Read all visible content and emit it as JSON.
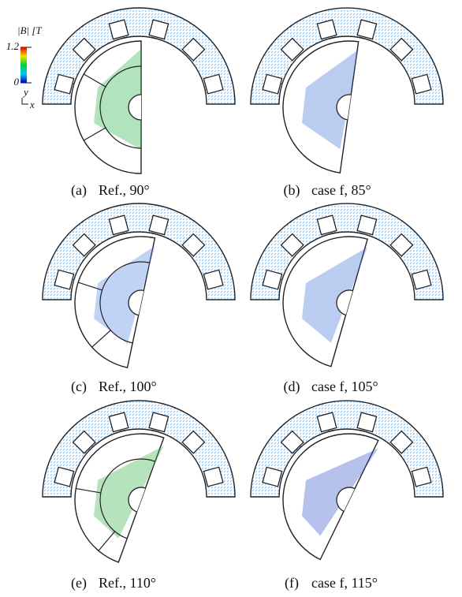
{
  "colorbar": {
    "label": "|B| [T",
    "ticks": [
      0,
      1.2
    ],
    "axes": {
      "y": "y",
      "x": "x"
    }
  },
  "panels": [
    {
      "tag": "(a)",
      "caption": "Ref., 90°"
    },
    {
      "tag": "(b)",
      "caption": "case f, 85°"
    },
    {
      "tag": "(c)",
      "caption": "Ref., 100°"
    },
    {
      "tag": "(d)",
      "caption": "case f, 105°"
    },
    {
      "tag": "(e)",
      "caption": "Ref., 110°"
    },
    {
      "tag": "(f)",
      "caption": "case f, 115°"
    }
  ]
}
